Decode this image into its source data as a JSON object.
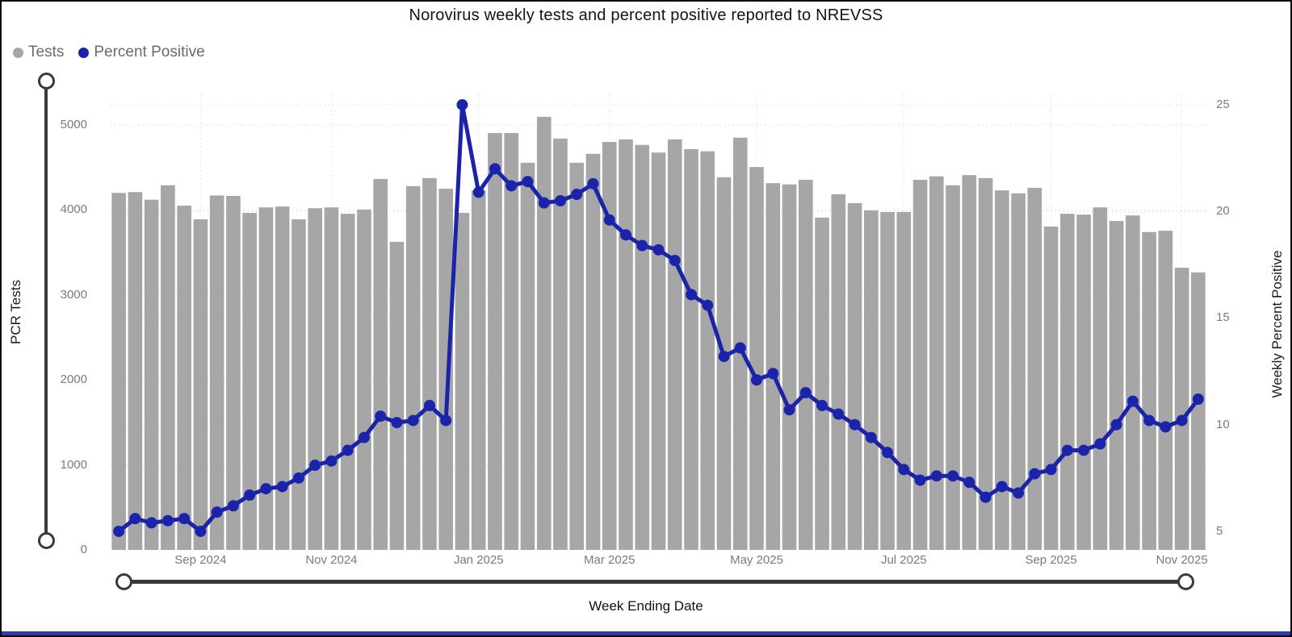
{
  "title": "Norovirus weekly tests and percent positive reported to NREVSS",
  "legend": {
    "items": [
      {
        "label": "Tests",
        "color": "#a6a6a6"
      },
      {
        "label": "Percent Positive",
        "color": "#1b23aa"
      }
    ]
  },
  "axes": {
    "left": {
      "title": "PCR Tests",
      "ticks": [
        0,
        1000,
        2000,
        3000,
        4000,
        5000
      ]
    },
    "right": {
      "title": "Weekly Percent Positive",
      "ticks": [
        5,
        10,
        15,
        20,
        25
      ]
    },
    "x": {
      "title": "Week Ending Date",
      "ticks": [
        {
          "label": "Sep 2024",
          "index": 5
        },
        {
          "label": "Nov 2024",
          "index": 13
        },
        {
          "label": "Jan 2025",
          "index": 22
        },
        {
          "label": "Mar 2025",
          "index": 30
        },
        {
          "label": "May 2025",
          "index": 39
        },
        {
          "label": "Jul 2025",
          "index": 48
        },
        {
          "label": "Sep 2025",
          "index": 57
        },
        {
          "label": "Nov 2025",
          "index": 65
        }
      ]
    }
  },
  "chart_data": {
    "type": "combo",
    "title": "Norovirus weekly tests and percent positive reported to NREVSS",
    "xlabel": "Week Ending Date",
    "x_unit": "week",
    "x_range_label": "Aug 2024 - Nov 2025",
    "n_points": 67,
    "grid": "dotted",
    "legend_position": "top-left",
    "ylim_left": [
      0,
      5360
    ],
    "ylim_right": [
      4.13,
      25.49
    ],
    "series": [
      {
        "name": "Tests",
        "type": "bar",
        "axis": "left",
        "color": "#a6a6a6",
        "values": [
          4200,
          4210,
          4120,
          4290,
          4050,
          3890,
          4170,
          4165,
          3965,
          4030,
          4040,
          3890,
          4020,
          4030,
          3955,
          4005,
          4365,
          3625,
          4280,
          4375,
          4250,
          3965,
          4230,
          4905,
          4905,
          4555,
          5095,
          4840,
          4555,
          4660,
          4800,
          4830,
          4765,
          4675,
          4830,
          4715,
          4690,
          4385,
          4850,
          4505,
          4315,
          4300,
          4355,
          3910,
          4185,
          4080,
          3995,
          3975,
          3975,
          4355,
          4395,
          4290,
          4410,
          4375,
          4230,
          4195,
          4260,
          3805,
          3955,
          3945,
          4030,
          3870,
          3935,
          3740,
          3755,
          3320,
          3265
        ]
      },
      {
        "name": "Percent Positive",
        "type": "line",
        "axis": "right",
        "color": "#1b23aa",
        "values": [
          5.0,
          5.6,
          5.4,
          5.5,
          5.6,
          5.0,
          5.9,
          6.2,
          6.7,
          7.0,
          7.1,
          7.5,
          8.1,
          8.3,
          8.8,
          9.4,
          10.4,
          10.1,
          10.2,
          10.9,
          10.2,
          25.0,
          20.9,
          22.0,
          21.2,
          21.4,
          20.4,
          20.5,
          20.8,
          21.3,
          19.6,
          18.9,
          18.4,
          18.2,
          17.7,
          16.1,
          15.6,
          13.2,
          13.6,
          12.1,
          12.4,
          10.7,
          11.5,
          10.9,
          10.5,
          10.0,
          9.4,
          8.7,
          7.9,
          7.4,
          7.6,
          7.6,
          7.3,
          6.6,
          7.1,
          6.8,
          7.7,
          7.9,
          8.8,
          8.8,
          9.1,
          10.0,
          11.1,
          10.2,
          9.9,
          10.2,
          11.2
        ]
      }
    ]
  },
  "colors": {
    "bar": "#a6a6a6",
    "line": "#1b23aa",
    "gridline": "#d2d2d2",
    "slider": "#3b3a39",
    "tick_text": "#7a7a7a",
    "bottom_strip": "#2f3ba8"
  }
}
